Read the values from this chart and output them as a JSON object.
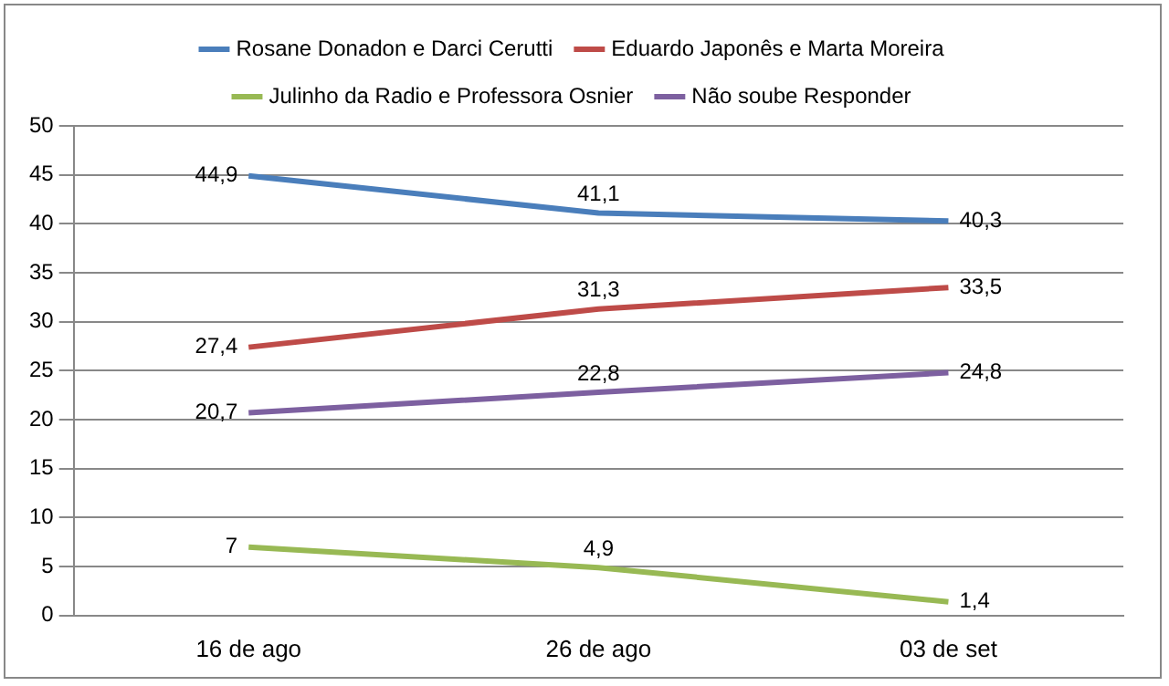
{
  "chart_data": {
    "type": "line",
    "categories": [
      "16 de ago",
      "26 de ago",
      "03 de set"
    ],
    "series": [
      {
        "name": "Rosane Donadon e Darci Cerutti",
        "color": "#4a7ebb",
        "values": [
          44.9,
          41.1,
          40.3
        ],
        "value_labels": [
          "44,9",
          "41,1",
          "40,3"
        ]
      },
      {
        "name": "Eduardo Japonês e Marta Moreira",
        "color": "#be4b48",
        "values": [
          27.4,
          31.3,
          33.5
        ],
        "value_labels": [
          "27,4",
          "31,3",
          "33,5"
        ]
      },
      {
        "name": "Julinho da Radio e Professora Osnier",
        "color": "#98b954",
        "values": [
          7,
          4.9,
          1.4
        ],
        "value_labels": [
          "7",
          "4,9",
          "1,4"
        ]
      },
      {
        "name": "Não soube Responder",
        "color": "#7d60a0",
        "values": [
          20.7,
          22.8,
          24.8
        ],
        "value_labels": [
          "20,7",
          "22,8",
          "24,8"
        ]
      }
    ],
    "ylim": [
      0,
      50
    ],
    "yticks": [
      0,
      5,
      10,
      15,
      20,
      25,
      30,
      35,
      40,
      45,
      50
    ],
    "grid": "y",
    "legend": "top",
    "marker": "none",
    "line_style": "solid"
  }
}
